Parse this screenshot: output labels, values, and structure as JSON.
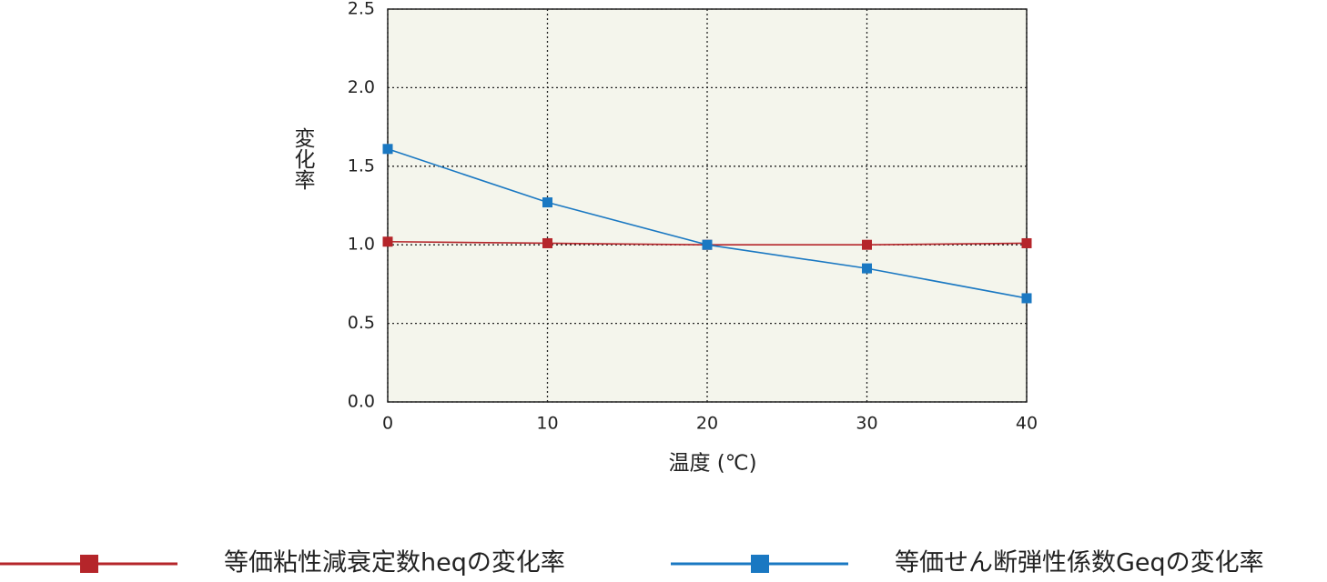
{
  "chart_data": {
    "type": "line",
    "x_label": "温度 (℃)",
    "y_label": "変化率",
    "x": [
      0,
      10,
      20,
      30,
      40
    ],
    "xlim": [
      0,
      40
    ],
    "xticks": [
      0,
      10,
      20,
      30,
      40
    ],
    "ylim": [
      0,
      2.5
    ],
    "yticks": [
      {
        "value": 0,
        "label": "0.0"
      },
      0.5,
      {
        "value": 1,
        "label": "1.0"
      },
      1.5,
      {
        "value": 2,
        "label": "2.0"
      },
      2.5
    ],
    "grid": true,
    "series": [
      {
        "name": "等価粘性減衰定数heqの変化率",
        "color": "#b5252a",
        "values": [
          1.02,
          1.01,
          1.0,
          1.0,
          1.01
        ]
      },
      {
        "name": "等価せん断弾性係数Geqの変化率",
        "color": "#1a78c2",
        "values": [
          1.61,
          1.27,
          1.0,
          0.85,
          0.66
        ]
      }
    ]
  }
}
